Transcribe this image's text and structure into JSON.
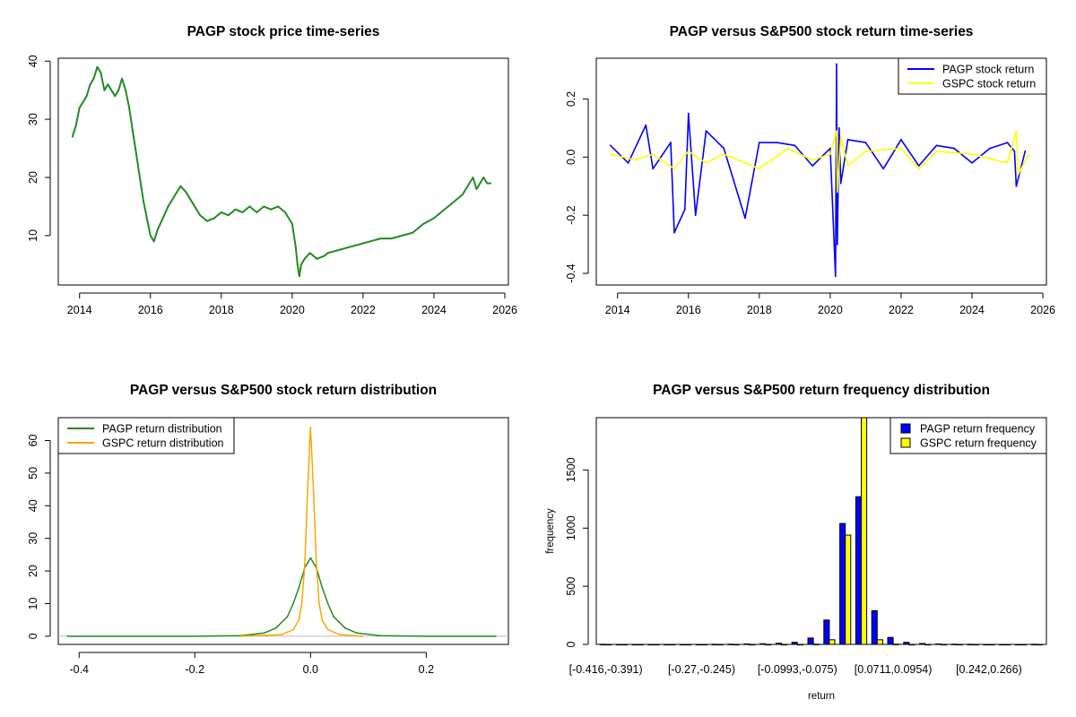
{
  "chart_data": [
    {
      "type": "line",
      "title": "PAGP stock price time-series",
      "xlabel": "",
      "ylabel": "",
      "xlim": [
        2013.4,
        2026.1
      ],
      "ylim": [
        1.5,
        40.5
      ],
      "xticks": [
        2014,
        2016,
        2018,
        2020,
        2022,
        2024,
        2026
      ],
      "xtick_labels": [
        "2014",
        "2016",
        "2018",
        "2020",
        "2022",
        "2024",
        "2026"
      ],
      "yticks": [
        10,
        20,
        30,
        40
      ],
      "ytick_labels": [
        "10",
        "20",
        "30",
        "40"
      ],
      "color": "#228B22",
      "series": [
        {
          "x": [
            2013.8,
            2013.9,
            2014.0,
            2014.1,
            2014.2,
            2014.3,
            2014.4,
            2014.5,
            2014.6,
            2014.7,
            2014.8,
            2014.9,
            2015.0,
            2015.1,
            2015.2,
            2015.3,
            2015.4,
            2015.5,
            2015.6,
            2015.7,
            2015.8,
            2015.9,
            2016.0,
            2016.1,
            2016.2,
            2016.35,
            2016.5,
            2016.7,
            2016.85,
            2017.0,
            2017.2,
            2017.4,
            2017.6,
            2017.8,
            2018.0,
            2018.2,
            2018.4,
            2018.6,
            2018.8,
            2019.0,
            2019.2,
            2019.4,
            2019.6,
            2019.8,
            2020.0,
            2020.1,
            2020.15,
            2020.2,
            2020.25,
            2020.35,
            2020.5,
            2020.7,
            2020.9,
            2021.0,
            2021.3,
            2021.6,
            2021.9,
            2022.2,
            2022.5,
            2022.8,
            2023.1,
            2023.4,
            2023.7,
            2024.0,
            2024.2,
            2024.4,
            2024.6,
            2024.8,
            2025.0,
            2025.1,
            2025.2,
            2025.3,
            2025.4,
            2025.5,
            2025.6
          ],
          "y": [
            27,
            29,
            32,
            33,
            34,
            36,
            37,
            39,
            38,
            35,
            36,
            35,
            34,
            35,
            37,
            35,
            32,
            28,
            24,
            20,
            16,
            13,
            10,
            9,
            11,
            13,
            15,
            17,
            18.5,
            17.5,
            15.5,
            13.5,
            12.5,
            13,
            14,
            13.5,
            14.5,
            14,
            15,
            14,
            15,
            14.5,
            15,
            14,
            12,
            8,
            5,
            3,
            5,
            6,
            7,
            6,
            6.5,
            7,
            7.5,
            8,
            8.5,
            9,
            9.5,
            9.5,
            10,
            10.5,
            12,
            13,
            14,
            15,
            16,
            17,
            19,
            20,
            18,
            19,
            20,
            19,
            19
          ]
        }
      ]
    },
    {
      "type": "line",
      "title": "PAGP versus S&P500 stock return time-series",
      "xlabel": "",
      "ylabel": "",
      "xlim": [
        2013.4,
        2026.1
      ],
      "ylim": [
        -0.44,
        0.34
      ],
      "xticks": [
        2014,
        2016,
        2018,
        2020,
        2022,
        2024,
        2026
      ],
      "xtick_labels": [
        "2014",
        "2016",
        "2018",
        "2020",
        "2022",
        "2024",
        "2026"
      ],
      "yticks": [
        -0.4,
        -0.2,
        0.0,
        0.2
      ],
      "ytick_labels": [
        "-0.4",
        "-0.2",
        "0.0",
        "0.2"
      ],
      "legend_position": "top-right",
      "series": [
        {
          "name": "PAGP stock return",
          "color": "#0000FF",
          "x": [
            2013.8,
            2014.3,
            2014.8,
            2015.0,
            2015.5,
            2015.6,
            2015.9,
            2016.0,
            2016.2,
            2016.5,
            2017.0,
            2017.6,
            2018.0,
            2018.5,
            2019.0,
            2019.5,
            2020.0,
            2020.15,
            2020.18,
            2020.2,
            2020.25,
            2020.3,
            2020.5,
            2021.0,
            2021.5,
            2022.0,
            2022.5,
            2023.0,
            2023.5,
            2024.0,
            2024.5,
            2025.0,
            2025.2,
            2025.25,
            2025.5
          ],
          "y": [
            0.04,
            -0.02,
            0.11,
            -0.04,
            0.05,
            -0.26,
            -0.18,
            0.15,
            -0.2,
            0.09,
            0.03,
            -0.21,
            0.05,
            0.05,
            0.04,
            -0.03,
            0.03,
            -0.41,
            0.32,
            -0.3,
            0.1,
            -0.09,
            0.06,
            0.05,
            -0.04,
            0.06,
            -0.03,
            0.04,
            0.03,
            -0.02,
            0.03,
            0.05,
            0.02,
            -0.1,
            0.02
          ]
        },
        {
          "name": "GSPC stock return",
          "color": "#FFFF00",
          "x": [
            2013.8,
            2014.5,
            2015.0,
            2015.6,
            2016.0,
            2016.5,
            2017.0,
            2018.0,
            2018.8,
            2019.5,
            2020.0,
            2020.18,
            2020.2,
            2020.3,
            2020.5,
            2021.0,
            2022.0,
            2022.5,
            2023.0,
            2024.0,
            2025.0,
            2025.25,
            2025.3,
            2025.6
          ],
          "y": [
            0.01,
            -0.01,
            0.01,
            -0.04,
            0.02,
            -0.02,
            0.01,
            -0.04,
            0.03,
            -0.01,
            0.01,
            0.09,
            -0.12,
            0.07,
            -0.03,
            0.02,
            0.03,
            -0.04,
            0.02,
            0.01,
            -0.02,
            0.09,
            -0.06,
            0.01
          ]
        }
      ]
    },
    {
      "type": "line",
      "title": "PAGP versus S&P500 stock return distribution",
      "xlabel": "",
      "ylabel": "",
      "xlim": [
        -0.436,
        0.342
      ],
      "ylim": [
        -2.5,
        67
      ],
      "xticks": [
        -0.4,
        -0.2,
        0.0,
        0.2
      ],
      "xtick_labels": [
        "-0.4",
        "-0.2",
        "0.0",
        "0.2"
      ],
      "yticks": [
        0,
        10,
        20,
        30,
        40,
        50,
        60
      ],
      "ytick_labels": [
        "0",
        "10",
        "20",
        "30",
        "40",
        "50",
        "60"
      ],
      "legend_position": "top-left",
      "series": [
        {
          "name": "PAGP return distribution",
          "color": "#228B22",
          "x": [
            -0.42,
            -0.2,
            -0.12,
            -0.08,
            -0.06,
            -0.04,
            -0.03,
            -0.02,
            -0.01,
            0.0,
            0.01,
            0.02,
            0.03,
            0.04,
            0.06,
            0.08,
            0.12,
            0.2,
            0.32
          ],
          "y": [
            0,
            0,
            0.2,
            1.0,
            2.5,
            6,
            10,
            15,
            21,
            24,
            21,
            15,
            10,
            6,
            2.5,
            1.0,
            0.2,
            0,
            0
          ]
        },
        {
          "name": "GSPC return distribution",
          "color": "#FFA500",
          "x": [
            -0.12,
            -0.05,
            -0.03,
            -0.02,
            -0.015,
            -0.01,
            -0.005,
            0.0,
            0.005,
            0.01,
            0.015,
            0.02,
            0.03,
            0.05,
            0.09
          ],
          "y": [
            0,
            0.5,
            2,
            5,
            10,
            22,
            45,
            64,
            45,
            22,
            10,
            5,
            2,
            0.5,
            0
          ]
        }
      ]
    },
    {
      "type": "bar",
      "title": "PAGP versus S&P500 return frequency distribution",
      "xlabel": "return",
      "ylabel": "frequency",
      "ylim": [
        0,
        1950
      ],
      "yticks": [
        0,
        500,
        1000,
        1500
      ],
      "ytick_labels": [
        "0",
        "500",
        "1000",
        "1500"
      ],
      "legend_position": "top-right",
      "categories": [
        "[-0.416,-0.391)",
        "",
        "",
        "",
        "",
        "",
        "[-0.27,-0.245)",
        "",
        "",
        "",
        "",
        "",
        "[-0.0993,-0.075)",
        "",
        "",
        "",
        "",
        "",
        "[0.0711,0.0954)",
        "",
        "",
        "",
        "",
        "",
        "[0.242,0.266)",
        "",
        "",
        ""
      ],
      "series": [
        {
          "name": "PAGP return frequency",
          "color": "#0000FF",
          "values": [
            1,
            0,
            0,
            0,
            0,
            0,
            0,
            1,
            2,
            4,
            6,
            10,
            18,
            55,
            210,
            1040,
            1270,
            290,
            60,
            18,
            8,
            4,
            2,
            1,
            0,
            0,
            0,
            1
          ]
        },
        {
          "name": "GSPC return frequency",
          "color": "#FFFF00",
          "values": [
            0,
            0,
            0,
            0,
            0,
            0,
            0,
            0,
            0,
            0,
            0,
            0,
            0,
            2,
            40,
            940,
            1950,
            40,
            2,
            0,
            0,
            0,
            0,
            0,
            0,
            0,
            0,
            0
          ]
        }
      ]
    }
  ]
}
